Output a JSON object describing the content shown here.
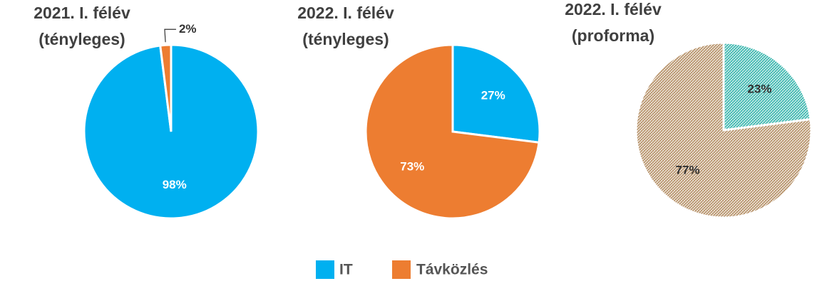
{
  "chart_data": [
    {
      "type": "pie",
      "title": [
        "2021. I. félév",
        "(tényleges)"
      ],
      "categories": [
        "IT",
        "Távközlés"
      ],
      "values": [
        98,
        2
      ],
      "value_labels": [
        "98%",
        "2%"
      ],
      "colors": [
        "#00b0f0",
        "#ed7d31"
      ],
      "hatched": false
    },
    {
      "type": "pie",
      "title": [
        "2022. I. félév",
        "(tényleges)"
      ],
      "categories": [
        "IT",
        "Távközlés"
      ],
      "values": [
        27,
        73
      ],
      "value_labels": [
        "27%",
        "73%"
      ],
      "colors": [
        "#00b0f0",
        "#ed7d31"
      ],
      "hatched": false
    },
    {
      "type": "pie",
      "title": [
        "2022. I. félév",
        "(proforma)"
      ],
      "categories": [
        "IT",
        "Távközlés"
      ],
      "values": [
        23,
        77
      ],
      "value_labels": [
        "23%",
        "77%"
      ],
      "colors": [
        "#3fb8b0",
        "#b8946c"
      ],
      "hatched": true
    }
  ]
}
